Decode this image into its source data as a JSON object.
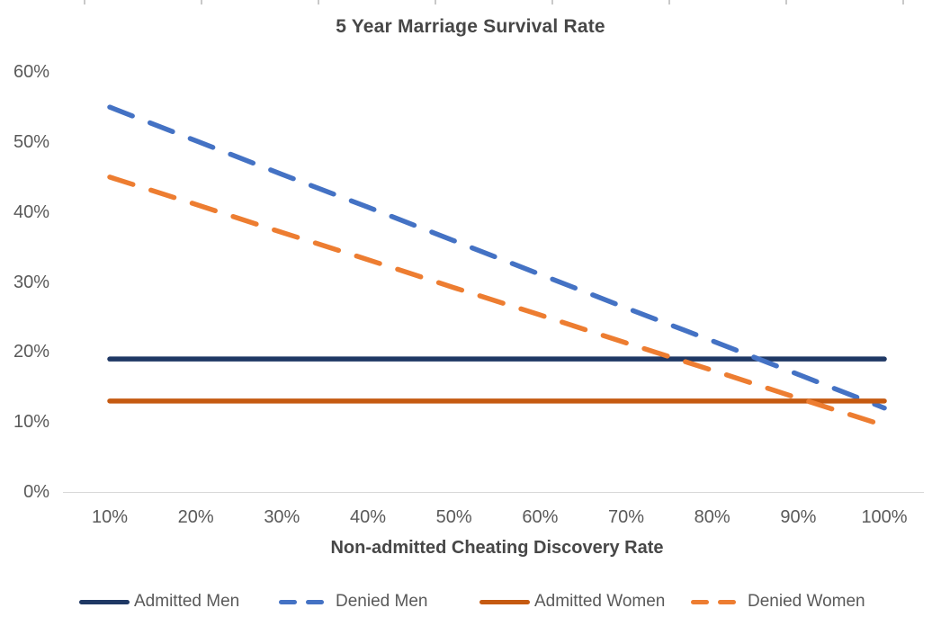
{
  "chart": {
    "title": "5 Year Marriage Survival Rate",
    "y_axis": {
      "tick_labels": [
        "60%",
        "50%",
        "40%",
        "30%",
        "20%",
        "10%",
        "0%"
      ]
    },
    "x_axis": {
      "title": "Non-admitted Cheating Discovery Rate",
      "tick_labels": [
        "10%",
        "20%",
        "30%",
        "40%",
        "50%",
        "60%",
        "70%",
        "80%",
        "90%",
        "100%"
      ]
    },
    "colors": {
      "admitted_men": "#1F3864",
      "denied_men": "#4472C4",
      "admitted_women": "#C55A11",
      "denied_women": "#ED7D31",
      "axis_line": "#d9d9d9",
      "text": "#595959"
    }
  },
  "chart_data": {
    "type": "line",
    "title": "5 Year Marriage Survival Rate",
    "xlabel": "Non-admitted Cheating Discovery Rate",
    "ylabel": "",
    "x_percent": [
      10,
      20,
      30,
      40,
      50,
      60,
      70,
      80,
      90,
      100
    ],
    "ylim": [
      0,
      60
    ],
    "y_tick_step": 10,
    "grid": false,
    "series": [
      {
        "name": "Admitted Men",
        "style": "solid",
        "color": "#1F3864",
        "values": [
          19,
          19,
          19,
          19,
          19,
          19,
          19,
          19,
          19,
          19
        ]
      },
      {
        "name": "Denied Men",
        "style": "dashed",
        "color": "#4472C4",
        "values": [
          55,
          50.2,
          45.4,
          40.7,
          35.9,
          31.1,
          26.3,
          21.6,
          16.8,
          12
        ]
      },
      {
        "name": "Admitted Women",
        "style": "solid",
        "color": "#C55A11",
        "values": [
          13,
          13,
          13,
          13,
          13,
          13,
          13,
          13,
          13,
          13
        ]
      },
      {
        "name": "Denied Women",
        "style": "dashed",
        "color": "#ED7D31",
        "values": [
          45,
          41.1,
          37.1,
          33.2,
          29.2,
          25.3,
          21.3,
          17.4,
          13.4,
          9.5
        ]
      }
    ],
    "legend": {
      "position": "bottom",
      "entries": [
        "Admitted Men",
        "Denied Men",
        "Admitted Women",
        "Denied Women"
      ]
    }
  }
}
